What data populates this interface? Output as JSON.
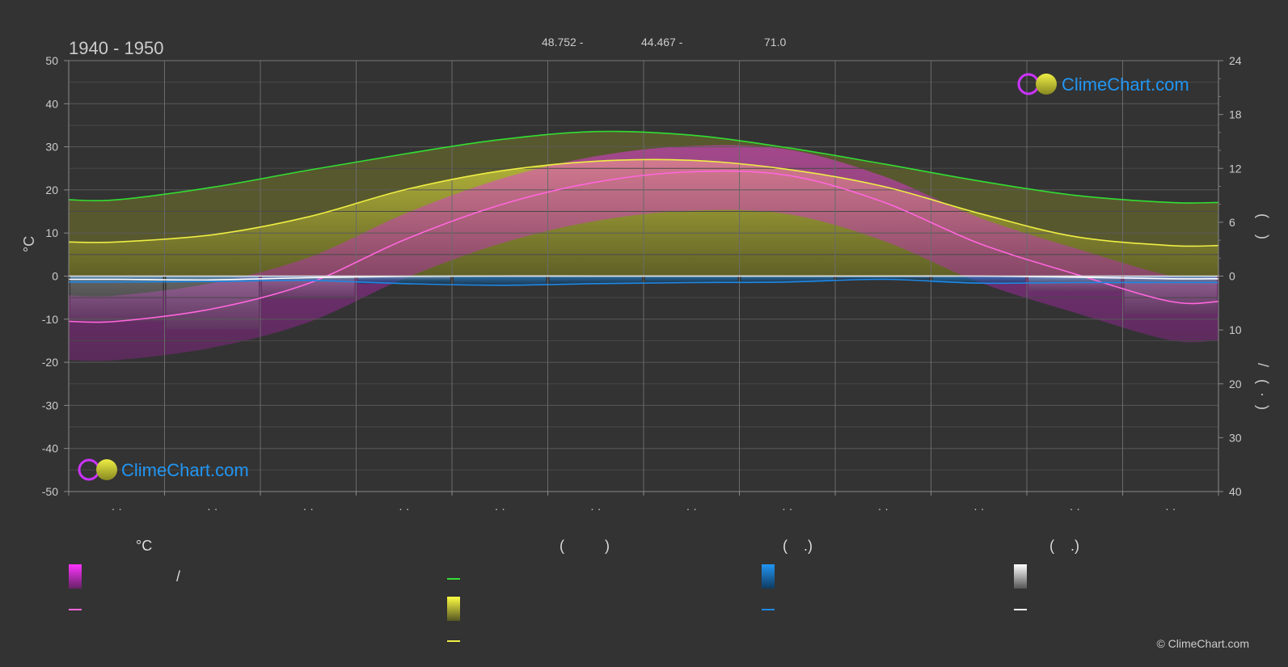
{
  "header": {
    "period": "1940 - 1950",
    "lat": "48.752 -",
    "lon": "44.467 -",
    "elev": "71.0"
  },
  "watermark": "ClimeChart.com",
  "copyright": "© ClimeChart.com",
  "colors": {
    "background": "#333333",
    "grid": "#555555",
    "daylight": "#33dd33",
    "sunshine": "#eeee44",
    "temperature": "#ff66dd",
    "temperature_band": "#cc22cc",
    "precipitation": "#1e88e5",
    "snow": "#ffffff",
    "brand": "#2196f3"
  },
  "chart_data": {
    "type": "line",
    "x": [
      1,
      2,
      3,
      4,
      5,
      6,
      7,
      8,
      9,
      10,
      11,
      12
    ],
    "x_tick_labels": [
      "· ·",
      "· ·",
      "· ·",
      "· ·",
      "· ·",
      "· ·",
      "· ·",
      "· ·",
      "· ·",
      "· ·",
      "· ·",
      "· ·"
    ],
    "left_axis": {
      "label": "°C",
      "ylim": [
        -50,
        50
      ],
      "ticks": [
        50,
        40,
        30,
        20,
        10,
        0,
        -10,
        -20,
        -30,
        -40,
        -50
      ]
    },
    "right_axis_top": {
      "ylim": [
        0,
        24
      ],
      "ticks": [
        24,
        18,
        12,
        6,
        0
      ]
    },
    "right_axis_bottom": {
      "ylim": [
        0,
        40
      ],
      "ticks": [
        0,
        10,
        20,
        30,
        40
      ]
    },
    "right_label_upper": "(    )",
    "right_label_lower": "/   (  ·  )",
    "grid": true,
    "series": [
      {
        "key": "daylight",
        "axis": "hours",
        "values": [
          8.5,
          9.9,
          11.8,
          13.6,
          15.2,
          16.1,
          15.7,
          14.3,
          12.5,
          10.6,
          9.0,
          8.2
        ]
      },
      {
        "key": "sunshine",
        "axis": "hours",
        "values": [
          3.8,
          4.6,
          6.6,
          9.6,
          11.7,
          12.8,
          12.9,
          11.9,
          10.0,
          7.0,
          4.4,
          3.4
        ]
      },
      {
        "key": "temperature",
        "axis": "celsius",
        "values": [
          -10.5,
          -7.6,
          -1.7,
          8.4,
          16.5,
          21.8,
          24.2,
          23.4,
          17.2,
          7.6,
          0.5,
          -5.9
        ]
      },
      {
        "key": "precipitation",
        "axis": "mm",
        "values": [
          1.1,
          1.0,
          0.8,
          1.4,
          1.7,
          1.4,
          1.2,
          1.1,
          0.6,
          1.3,
          1.2,
          1.2
        ]
      },
      {
        "key": "snow",
        "axis": "mm",
        "values": [
          0.6,
          0.7,
          0.3,
          0.05,
          0,
          0,
          0,
          0,
          0,
          0,
          0.2,
          0.5
        ]
      }
    ]
  },
  "legend": {
    "groups": [
      {
        "heading": "°C",
        "lines": [
          "/",
          ""
        ]
      },
      {
        "heading": "(          )",
        "lines": [
          "",
          "",
          ""
        ]
      },
      {
        "heading": "(    .)",
        "lines": [
          "",
          ""
        ]
      },
      {
        "heading": "(    .)",
        "lines": [
          "",
          ""
        ]
      }
    ]
  }
}
